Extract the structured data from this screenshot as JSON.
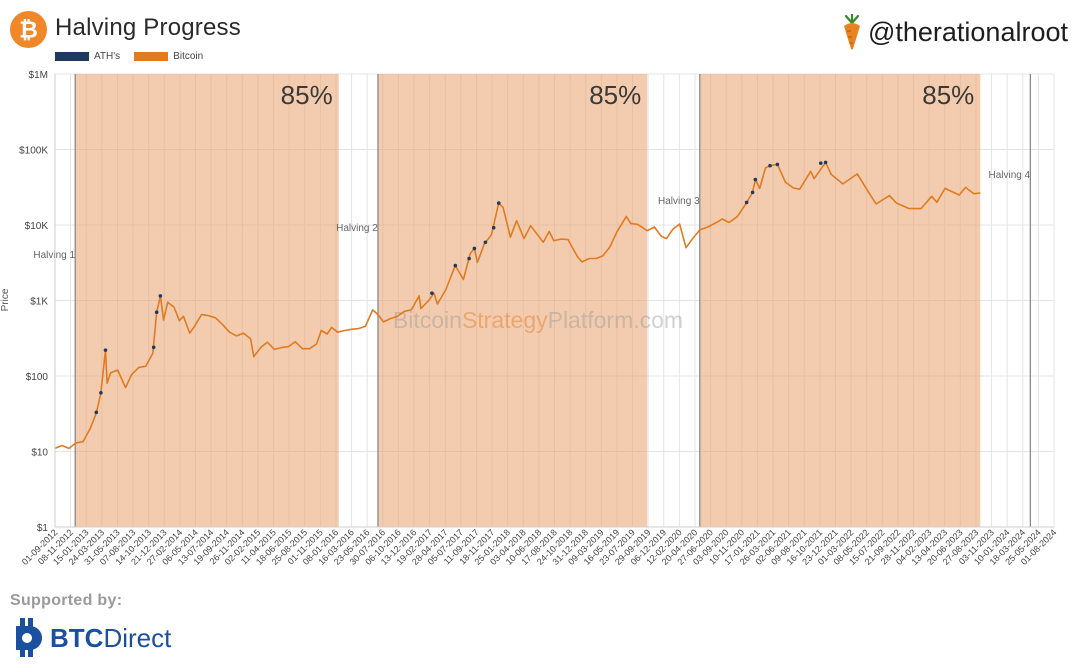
{
  "header": {
    "title": "Halving Progress",
    "handle": "@therationalroot",
    "legend": [
      {
        "label": "ATH's",
        "color": "#1f3a60"
      },
      {
        "label": "Bitcoin",
        "color": "#e07b22"
      }
    ]
  },
  "footer": {
    "supported_label": "Supported by:",
    "sponsor_bold": "BTC",
    "sponsor_rest": "Direct"
  },
  "chart_data": {
    "type": "line",
    "y_scale": "log",
    "ylim": [
      1,
      1000000
    ],
    "ylabel": "Price",
    "y_ticks": [
      {
        "v": 1,
        "label": "$1"
      },
      {
        "v": 10,
        "label": "$10"
      },
      {
        "v": 100,
        "label": "$100"
      },
      {
        "v": 1000,
        "label": "$1K"
      },
      {
        "v": 10000,
        "label": "$10K"
      },
      {
        "v": 100000,
        "label": "$100K"
      },
      {
        "v": 1000000,
        "label": "$1M"
      }
    ],
    "xlim": [
      "2012-09-01",
      "2024-08-01"
    ],
    "x_tick_labels": [
      "01-09-2012",
      "08-11-2012",
      "15-01-2013",
      "24-03-2013",
      "31-05-2013",
      "07-08-2013",
      "14-10-2013",
      "21-12-2013",
      "27-02-2014",
      "06-05-2014",
      "13-07-2014",
      "19-09-2014",
      "26-11-2014",
      "02-02-2015",
      "11-04-2015",
      "18-06-2015",
      "25-08-2015",
      "01-11-2015",
      "08-01-2016",
      "16-03-2016",
      "23-05-2016",
      "30-07-2016",
      "06-10-2016",
      "13-12-2016",
      "19-02-2017",
      "28-04-2017",
      "05-07-2017",
      "11-09-2017",
      "18-11-2017",
      "25-01-2018",
      "03-04-2018",
      "10-06-2018",
      "17-08-2018",
      "24-10-2018",
      "31-12-2018",
      "09-03-2019",
      "16-05-2019",
      "23-07-2019",
      "29-09-2019",
      "06-12-2019",
      "12-02-2020",
      "20-04-2020",
      "27-06-2020",
      "03-09-2020",
      "10-11-2020",
      "17-01-2021",
      "26-03-2021",
      "02-06-2021",
      "09-08-2021",
      "16-10-2021",
      "23-12-2021",
      "01-03-2022",
      "08-05-2022",
      "15-07-2022",
      "21-09-2022",
      "28-11-2022",
      "04-02-2023",
      "13-04-2023",
      "20-06-2023",
      "27-08-2023",
      "03-11-2023",
      "10-01-2024",
      "18-03-2024",
      "25-05-2024",
      "01-08-2024"
    ],
    "halvings": [
      {
        "label": "Halving 1",
        "date": "2012-11-28"
      },
      {
        "label": "Halving 2",
        "date": "2016-07-09"
      },
      {
        "label": "Halving 3",
        "date": "2020-05-11"
      },
      {
        "label": "Halving 4",
        "date": "2024-04-20"
      }
    ],
    "progress_bands": [
      {
        "label": "85%",
        "start": "2012-11-28",
        "end": "2016-01-20"
      },
      {
        "label": "85%",
        "start": "2016-07-09",
        "end": "2019-09-25"
      },
      {
        "label": "85%",
        "start": "2020-05-11",
        "end": "2023-09-15"
      }
    ],
    "watermark": {
      "part1": "Bitcoin",
      "part2": "Strategy",
      "part3": "Platform",
      "part4": ".com"
    },
    "series": [
      {
        "name": "Bitcoin",
        "color": "#e07b22",
        "points": [
          [
            "2012-09-01",
            11
          ],
          [
            "2012-10-01",
            12
          ],
          [
            "2012-11-01",
            11
          ],
          [
            "2012-12-01",
            13
          ],
          [
            "2013-01-01",
            13.5
          ],
          [
            "2013-02-01",
            20
          ],
          [
            "2013-03-01",
            33
          ],
          [
            "2013-03-20",
            60
          ],
          [
            "2013-04-09",
            220
          ],
          [
            "2013-04-16",
            80
          ],
          [
            "2013-05-01",
            110
          ],
          [
            "2013-06-01",
            120
          ],
          [
            "2013-07-05",
            70
          ],
          [
            "2013-08-01",
            105
          ],
          [
            "2013-09-01",
            130
          ],
          [
            "2013-10-01",
            135
          ],
          [
            "2013-11-01",
            200
          ],
          [
            "2013-11-18",
            700
          ],
          [
            "2013-12-04",
            1150
          ],
          [
            "2013-12-18",
            550
          ],
          [
            "2014-01-05",
            950
          ],
          [
            "2014-02-01",
            820
          ],
          [
            "2014-02-25",
            540
          ],
          [
            "2014-03-15",
            620
          ],
          [
            "2014-04-11",
            370
          ],
          [
            "2014-05-01",
            450
          ],
          [
            "2014-06-01",
            650
          ],
          [
            "2014-07-01",
            630
          ],
          [
            "2014-08-01",
            590
          ],
          [
            "2014-09-01",
            480
          ],
          [
            "2014-10-01",
            380
          ],
          [
            "2014-11-01",
            340
          ],
          [
            "2014-12-01",
            370
          ],
          [
            "2015-01-01",
            310
          ],
          [
            "2015-01-15",
            180
          ],
          [
            "2015-02-15",
            240
          ],
          [
            "2015-03-15",
            280
          ],
          [
            "2015-04-15",
            225
          ],
          [
            "2015-05-15",
            238
          ],
          [
            "2015-06-15",
            245
          ],
          [
            "2015-07-15",
            285
          ],
          [
            "2015-08-15",
            230
          ],
          [
            "2015-09-15",
            230
          ],
          [
            "2015-10-15",
            265
          ],
          [
            "2015-11-05",
            400
          ],
          [
            "2015-12-01",
            360
          ],
          [
            "2015-12-20",
            440
          ],
          [
            "2016-01-15",
            380
          ],
          [
            "2016-02-15",
            400
          ],
          [
            "2016-03-15",
            415
          ],
          [
            "2016-04-15",
            425
          ],
          [
            "2016-05-15",
            455
          ],
          [
            "2016-06-16",
            750
          ],
          [
            "2016-07-09",
            650
          ],
          [
            "2016-08-02",
            520
          ],
          [
            "2016-09-01",
            575
          ],
          [
            "2016-10-01",
            615
          ],
          [
            "2016-11-01",
            720
          ],
          [
            "2016-12-01",
            750
          ],
          [
            "2017-01-04",
            1150
          ],
          [
            "2017-01-12",
            780
          ],
          [
            "2017-02-15",
            1000
          ],
          [
            "2017-03-10",
            1250
          ],
          [
            "2017-03-25",
            900
          ],
          [
            "2017-05-01",
            1400
          ],
          [
            "2017-06-11",
            2900
          ],
          [
            "2017-07-16",
            1900
          ],
          [
            "2017-08-15",
            4200
          ],
          [
            "2017-09-02",
            4900
          ],
          [
            "2017-09-15",
            3200
          ],
          [
            "2017-10-15",
            5600
          ],
          [
            "2017-11-15",
            7400
          ],
          [
            "2017-12-17",
            19500
          ],
          [
            "2018-01-05",
            17000
          ],
          [
            "2018-02-06",
            6900
          ],
          [
            "2018-03-05",
            11400
          ],
          [
            "2018-04-06",
            6600
          ],
          [
            "2018-05-05",
            9800
          ],
          [
            "2018-06-29",
            5900
          ],
          [
            "2018-07-25",
            8200
          ],
          [
            "2018-08-14",
            6200
          ],
          [
            "2018-09-15",
            6500
          ],
          [
            "2018-10-15",
            6400
          ],
          [
            "2018-11-25",
            3800
          ],
          [
            "2018-12-15",
            3250
          ],
          [
            "2019-01-15",
            3600
          ],
          [
            "2019-02-15",
            3600
          ],
          [
            "2019-03-15",
            3900
          ],
          [
            "2019-04-15",
            5100
          ],
          [
            "2019-05-15",
            8000
          ],
          [
            "2019-06-26",
            13000
          ],
          [
            "2019-07-15",
            10500
          ],
          [
            "2019-08-15",
            10200
          ],
          [
            "2019-09-25",
            8400
          ],
          [
            "2019-10-26",
            9400
          ],
          [
            "2019-11-25",
            7100
          ],
          [
            "2019-12-18",
            6600
          ],
          [
            "2020-01-15",
            8800
          ],
          [
            "2020-02-13",
            10300
          ],
          [
            "2020-03-12",
            5000
          ],
          [
            "2020-04-15",
            6900
          ],
          [
            "2020-05-11",
            8600
          ],
          [
            "2020-06-15",
            9400
          ],
          [
            "2020-07-27",
            11000
          ],
          [
            "2020-08-17",
            12000
          ],
          [
            "2020-09-15",
            10800
          ],
          [
            "2020-10-21",
            12900
          ],
          [
            "2020-11-30",
            19500
          ],
          [
            "2020-12-27",
            27000
          ],
          [
            "2021-01-08",
            40000
          ],
          [
            "2021-01-27",
            30500
          ],
          [
            "2021-02-21",
            57000
          ],
          [
            "2021-03-13",
            61000
          ],
          [
            "2021-04-14",
            63500
          ],
          [
            "2021-05-19",
            37000
          ],
          [
            "2021-06-22",
            31000
          ],
          [
            "2021-07-20",
            29800
          ],
          [
            "2021-09-06",
            51500
          ],
          [
            "2021-09-21",
            41000
          ],
          [
            "2021-11-10",
            67500
          ],
          [
            "2021-12-04",
            47000
          ],
          [
            "2022-01-24",
            35000
          ],
          [
            "2022-03-28",
            47500
          ],
          [
            "2022-05-12",
            28500
          ],
          [
            "2022-06-18",
            19000
          ],
          [
            "2022-08-15",
            24500
          ],
          [
            "2022-09-15",
            19500
          ],
          [
            "2022-11-09",
            16500
          ],
          [
            "2022-12-31",
            16500
          ],
          [
            "2023-02-15",
            24000
          ],
          [
            "2023-03-10",
            20000
          ],
          [
            "2023-04-14",
            30500
          ],
          [
            "2023-06-15",
            25000
          ],
          [
            "2023-07-13",
            31500
          ],
          [
            "2023-08-18",
            26000
          ],
          [
            "2023-09-15",
            26500
          ]
        ]
      },
      {
        "name": "ATH's",
        "color": "#1f3a60",
        "points": [
          [
            "2013-02-28",
            33
          ],
          [
            "2013-03-20",
            60
          ],
          [
            "2013-04-09",
            220
          ],
          [
            "2013-11-05",
            240
          ],
          [
            "2013-11-18",
            700
          ],
          [
            "2013-12-04",
            1150
          ],
          [
            "2017-03-01",
            1250
          ],
          [
            "2017-06-11",
            2900
          ],
          [
            "2017-08-10",
            3600
          ],
          [
            "2017-09-02",
            4900
          ],
          [
            "2017-10-20",
            5900
          ],
          [
            "2017-11-25",
            9200
          ],
          [
            "2017-12-17",
            19500
          ],
          [
            "2020-12-01",
            19900
          ],
          [
            "2020-12-27",
            27000
          ],
          [
            "2021-01-08",
            40000
          ],
          [
            "2021-03-13",
            61000
          ],
          [
            "2021-04-14",
            63500
          ],
          [
            "2021-10-20",
            66000
          ],
          [
            "2021-11-10",
            67500
          ]
        ]
      }
    ]
  }
}
